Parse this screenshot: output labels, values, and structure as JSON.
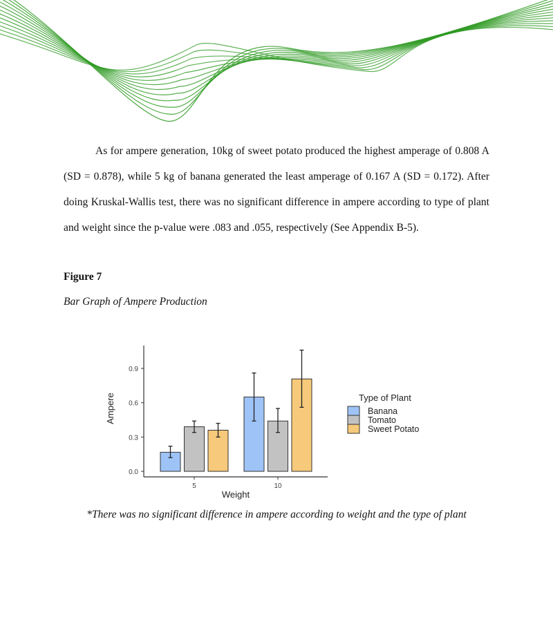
{
  "colors": {
    "header_lines": "#2e9a22",
    "banana": "#9ec3f7",
    "tomato": "#c2c2c2",
    "sweet_potato": "#f7c97a",
    "bar_stroke": "#333333",
    "axis": "#333333"
  },
  "paragraph": "As for ampere generation, 10kg of sweet potato produced the highest amperage of 0.808 A (SD = 0.878), while 5 kg of banana generated the least amperage of 0.167 A (SD = 0.172). After doing Kruskal-Wallis test, there was no significant difference in ampere according to type of plant and weight since the p-value were .083 and .055, respectively (See Appendix B-5).",
  "figure": {
    "label": "Figure 7",
    "title": "Bar Graph of Ampere Production",
    "caption": "*There was no significant difference in ampere according to weight and the type of plant"
  },
  "chart_data": {
    "type": "bar",
    "xlabel": "Weight",
    "ylabel": "Ampere",
    "categories": [
      "5",
      "10"
    ],
    "ylim": [
      0,
      1.1
    ],
    "yticks": [
      "0.0",
      "0.3",
      "0.6",
      "0.9"
    ],
    "grid": false,
    "legend_title": "Type of Plant",
    "legend_position": "right",
    "series": [
      {
        "name": "Banana",
        "values": [
          0.167,
          0.65
        ],
        "error_low": [
          0.12,
          0.44
        ],
        "error_high": [
          0.22,
          0.86
        ]
      },
      {
        "name": "Tomato",
        "values": [
          0.39,
          0.44
        ],
        "error_low": [
          0.34,
          0.34
        ],
        "error_high": [
          0.44,
          0.55
        ]
      },
      {
        "name": "Sweet Potato",
        "values": [
          0.36,
          0.808
        ],
        "error_low": [
          0.3,
          0.56
        ],
        "error_high": [
          0.42,
          1.06
        ]
      }
    ]
  }
}
